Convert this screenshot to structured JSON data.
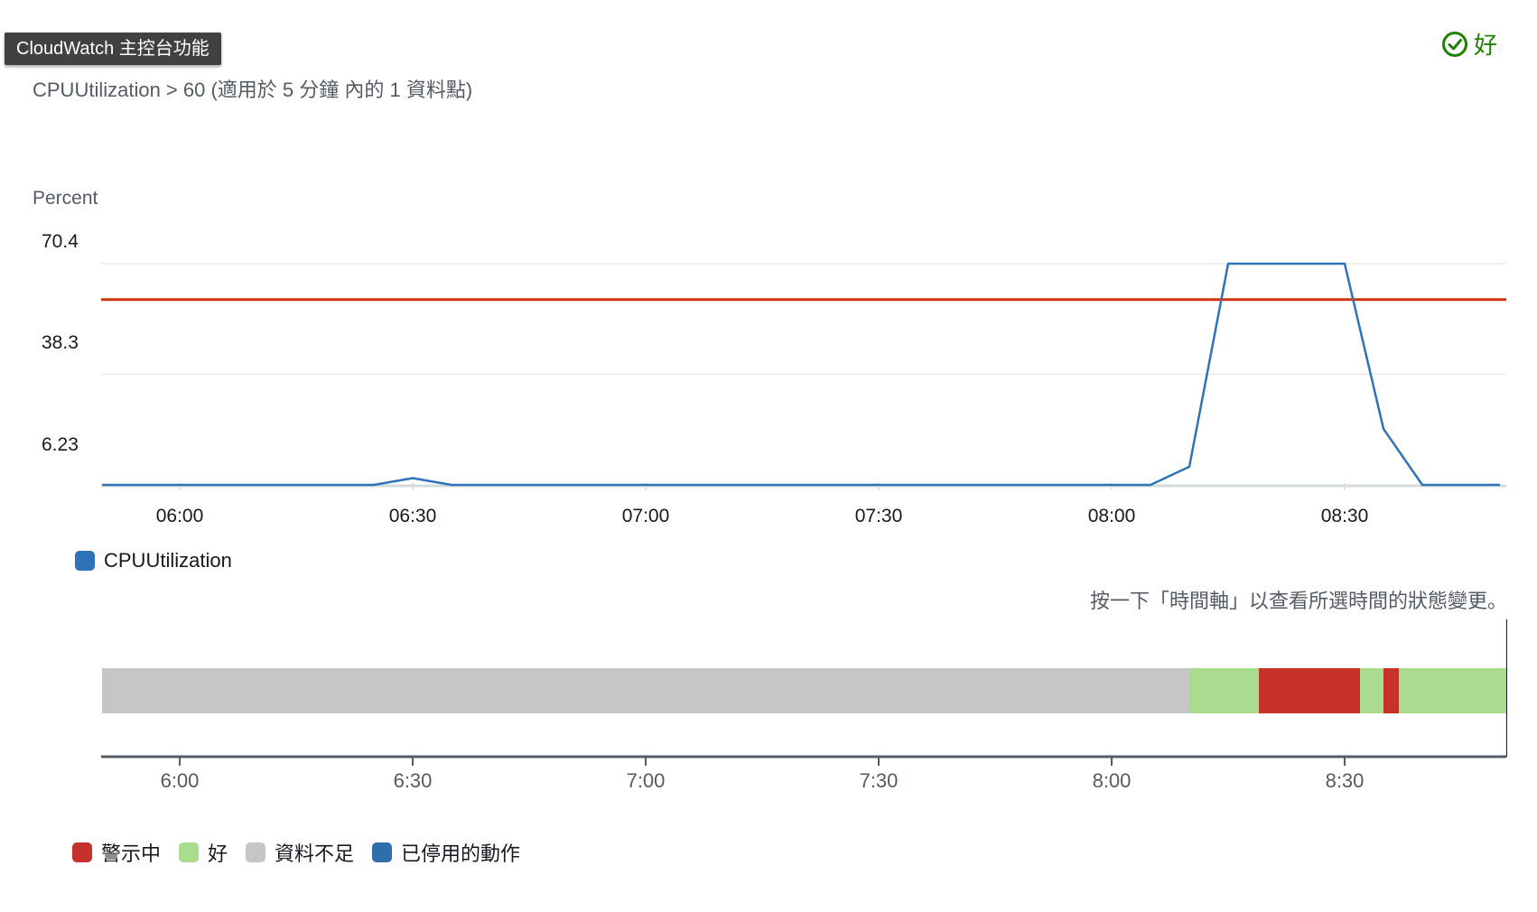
{
  "tooltip": "CloudWatch 主控台功能",
  "status": {
    "label": "好",
    "color": "#1d8102"
  },
  "subtitle": "CPUUtilization > 60 (適用於 5 分鐘 內的 1 資料點)",
  "colors": {
    "line": "#2e73b8",
    "threshold": "#d13212",
    "alarm": "#c7312b",
    "ok": "#a9dc8f",
    "insufficient": "#c6c6c6",
    "disabled": "#2e6ead"
  },
  "chart_data": {
    "type": "line",
    "ylabel": "Percent",
    "yticks": [
      "70.4",
      "38.3",
      "6.23"
    ],
    "ylim": [
      6.23,
      70.4
    ],
    "xticks": [
      "06:00",
      "06:30",
      "07:00",
      "07:30",
      "08:00",
      "08:30"
    ],
    "threshold": 60,
    "grid": true,
    "legend_position": "bottom-left",
    "series": [
      {
        "name": "CPUUtilization",
        "x": [
          "05:50",
          "06:25",
          "06:30",
          "06:35",
          "06:40",
          "08:05",
          "08:10",
          "08:15",
          "08:20",
          "08:25",
          "08:30",
          "08:35",
          "08:40",
          "08:50"
        ],
        "y": [
          6.23,
          6.23,
          8.2,
          6.23,
          6.23,
          6.23,
          11.5,
          70.4,
          70.4,
          70.4,
          70.4,
          22.5,
          6.23,
          6.23
        ]
      }
    ]
  },
  "legend": {
    "series_label": "CPUUtilization"
  },
  "timeline": {
    "hint": "按一下「時間軸」以查看所選時間的狀態變更。",
    "ticks": [
      "6:00",
      "6:30",
      "7:00",
      "7:30",
      "8:00",
      "8:30"
    ],
    "segments": [
      {
        "state": "insufficient",
        "start": "05:50",
        "end": "08:10"
      },
      {
        "state": "ok",
        "start": "08:10",
        "end": "08:19"
      },
      {
        "state": "alarm",
        "start": "08:19",
        "end": "08:32"
      },
      {
        "state": "ok",
        "start": "08:32",
        "end": "08:35"
      },
      {
        "state": "alarm",
        "start": "08:35",
        "end": "08:37"
      },
      {
        "state": "ok",
        "start": "08:37",
        "end": "08:51"
      }
    ]
  },
  "state_legend": {
    "alarm": "警示中",
    "ok": "好",
    "insufficient": "資料不足",
    "disabled": "已停用的動作"
  }
}
